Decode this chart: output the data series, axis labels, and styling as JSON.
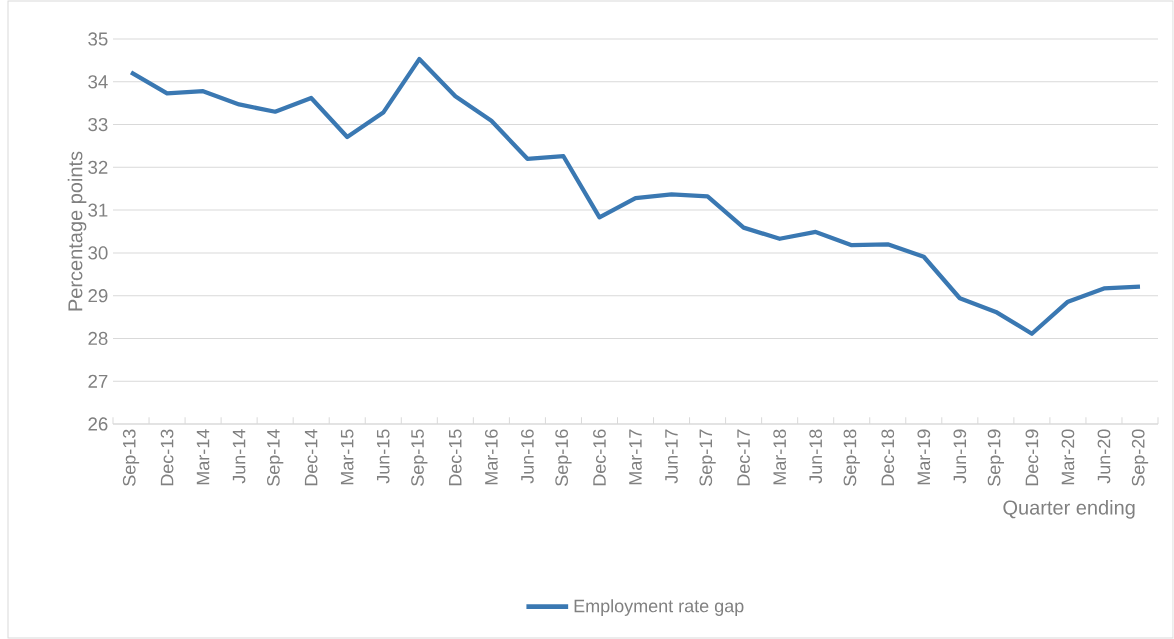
{
  "chart_data": {
    "type": "line",
    "ylabel": "Percentage points",
    "xlabel": "Quarter ending",
    "categories": [
      "Sep-13",
      "Dec-13",
      "Mar-14",
      "Jun-14",
      "Sep-14",
      "Dec-14",
      "Mar-15",
      "Jun-15",
      "Sep-15",
      "Dec-15",
      "Mar-16",
      "Jun-16",
      "Sep-16",
      "Dec-16",
      "Mar-17",
      "Jun-17",
      "Sep-17",
      "Dec-17",
      "Mar-18",
      "Jun-18",
      "Sep-18",
      "Dec-18",
      "Mar-19",
      "Jun-19",
      "Sep-19",
      "Dec-19",
      "Mar-20",
      "Jun-20",
      "Sep-20"
    ],
    "series": [
      {
        "name": "Employment rate gap",
        "color": "#3a78b2",
        "values": [
          34.22,
          33.73,
          33.78,
          33.47,
          33.3,
          33.62,
          32.71,
          33.28,
          34.53,
          33.66,
          33.09,
          32.2,
          32.26,
          30.83,
          31.28,
          31.37,
          31.32,
          30.59,
          30.33,
          30.49,
          30.18,
          30.2,
          29.91,
          28.94,
          28.62,
          28.11,
          28.86,
          29.17,
          29.21
        ]
      }
    ],
    "ylim": [
      26,
      35
    ],
    "yticks": [
      26,
      27,
      28,
      29,
      30,
      31,
      32,
      33,
      34,
      35
    ],
    "grid": "y",
    "legend": "bottom",
    "marker": "none",
    "line_style": "solid"
  }
}
